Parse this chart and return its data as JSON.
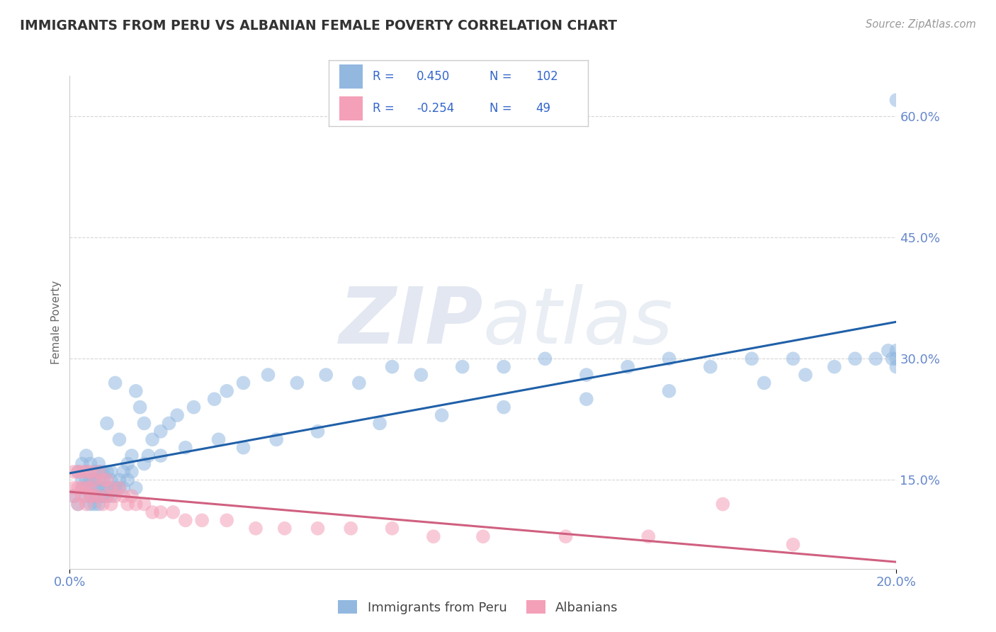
{
  "title": "IMMIGRANTS FROM PERU VS ALBANIAN FEMALE POVERTY CORRELATION CHART",
  "source": "Source: ZipAtlas.com",
  "ylabel": "Female Poverty",
  "xlim": [
    0.0,
    0.2
  ],
  "ylim": [
    0.04,
    0.65
  ],
  "ytick_labels": [
    "15.0%",
    "30.0%",
    "45.0%",
    "60.0%"
  ],
  "ytick_values": [
    0.15,
    0.3,
    0.45,
    0.6
  ],
  "blue_color": "#92b8e0",
  "pink_color": "#f4a0b8",
  "line_blue": "#2060a8",
  "line_pink": "#d06080",
  "watermark_zip": "ZIP",
  "watermark_atlas": "atlas",
  "background": "#ffffff",
  "grid_color": "#cccccc",
  "title_color": "#333333",
  "tick_color": "#6688cc",
  "peru_x": [
    0.001,
    0.002,
    0.002,
    0.003,
    0.003,
    0.003,
    0.004,
    0.004,
    0.004,
    0.004,
    0.004,
    0.005,
    0.005,
    0.005,
    0.005,
    0.005,
    0.006,
    0.006,
    0.006,
    0.006,
    0.006,
    0.007,
    0.007,
    0.007,
    0.007,
    0.007,
    0.007,
    0.008,
    0.008,
    0.008,
    0.008,
    0.009,
    0.009,
    0.009,
    0.009,
    0.01,
    0.01,
    0.01,
    0.011,
    0.011,
    0.012,
    0.012,
    0.013,
    0.013,
    0.014,
    0.014,
    0.015,
    0.016,
    0.016,
    0.017,
    0.018,
    0.019,
    0.02,
    0.022,
    0.024,
    0.026,
    0.03,
    0.035,
    0.038,
    0.042,
    0.048,
    0.055,
    0.062,
    0.07,
    0.078,
    0.085,
    0.095,
    0.105,
    0.115,
    0.125,
    0.135,
    0.145,
    0.155,
    0.165,
    0.175,
    0.185,
    0.19,
    0.195,
    0.198,
    0.199,
    0.2,
    0.2,
    0.2,
    0.2,
    0.178,
    0.168,
    0.145,
    0.125,
    0.105,
    0.09,
    0.075,
    0.06,
    0.05,
    0.042,
    0.036,
    0.028,
    0.022,
    0.018,
    0.015,
    0.012,
    0.01,
    0.008
  ],
  "peru_y": [
    0.13,
    0.12,
    0.16,
    0.14,
    0.15,
    0.17,
    0.13,
    0.14,
    0.15,
    0.16,
    0.18,
    0.12,
    0.13,
    0.14,
    0.15,
    0.17,
    0.12,
    0.13,
    0.14,
    0.15,
    0.16,
    0.12,
    0.13,
    0.14,
    0.15,
    0.16,
    0.17,
    0.13,
    0.14,
    0.15,
    0.16,
    0.13,
    0.14,
    0.16,
    0.22,
    0.13,
    0.15,
    0.16,
    0.14,
    0.27,
    0.14,
    0.2,
    0.14,
    0.16,
    0.15,
    0.17,
    0.18,
    0.14,
    0.26,
    0.24,
    0.22,
    0.18,
    0.2,
    0.21,
    0.22,
    0.23,
    0.24,
    0.25,
    0.26,
    0.27,
    0.28,
    0.27,
    0.28,
    0.27,
    0.29,
    0.28,
    0.29,
    0.29,
    0.3,
    0.28,
    0.29,
    0.3,
    0.29,
    0.3,
    0.3,
    0.29,
    0.3,
    0.3,
    0.31,
    0.3,
    0.31,
    0.3,
    0.29,
    0.62,
    0.28,
    0.27,
    0.26,
    0.25,
    0.24,
    0.23,
    0.22,
    0.21,
    0.2,
    0.19,
    0.2,
    0.19,
    0.18,
    0.17,
    0.16,
    0.15,
    0.14,
    0.13
  ],
  "alb_x": [
    0.001,
    0.001,
    0.001,
    0.002,
    0.002,
    0.002,
    0.003,
    0.003,
    0.003,
    0.004,
    0.004,
    0.004,
    0.005,
    0.005,
    0.005,
    0.006,
    0.006,
    0.007,
    0.007,
    0.008,
    0.008,
    0.009,
    0.009,
    0.01,
    0.01,
    0.011,
    0.012,
    0.013,
    0.014,
    0.015,
    0.016,
    0.018,
    0.02,
    0.022,
    0.025,
    0.028,
    0.032,
    0.038,
    0.045,
    0.052,
    0.06,
    0.068,
    0.078,
    0.088,
    0.1,
    0.12,
    0.14,
    0.158,
    0.175
  ],
  "alb_y": [
    0.13,
    0.14,
    0.16,
    0.12,
    0.14,
    0.16,
    0.13,
    0.14,
    0.16,
    0.12,
    0.14,
    0.16,
    0.13,
    0.14,
    0.16,
    0.13,
    0.15,
    0.13,
    0.16,
    0.12,
    0.15,
    0.13,
    0.15,
    0.12,
    0.14,
    0.13,
    0.14,
    0.13,
    0.12,
    0.13,
    0.12,
    0.12,
    0.11,
    0.11,
    0.11,
    0.1,
    0.1,
    0.1,
    0.09,
    0.09,
    0.09,
    0.09,
    0.09,
    0.08,
    0.08,
    0.08,
    0.08,
    0.12,
    0.07
  ]
}
